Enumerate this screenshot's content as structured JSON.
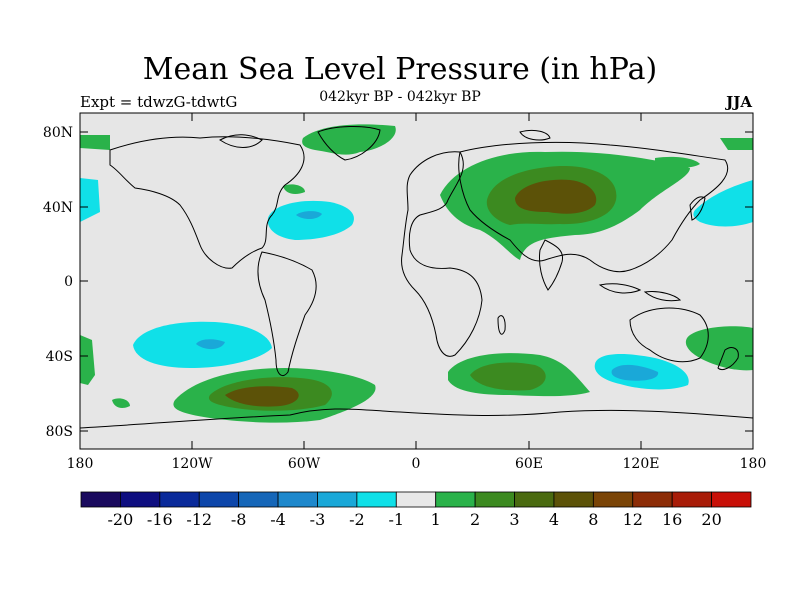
{
  "title": "Mean Sea Level Pressure (in hPa)",
  "expt_label": "Expt = tdwzG-tdwtG",
  "period": "042kyr BP - 042kyr BP",
  "season": "JJA",
  "lat_labels": [
    "80N",
    "40N",
    "0",
    "40S",
    "80S"
  ],
  "lon_labels": [
    "180",
    "120W",
    "60W",
    "0",
    "60E",
    "120E",
    "180"
  ],
  "colorbar": {
    "colors": [
      "#1a0a5e",
      "#0e0e80",
      "#0a2a9a",
      "#0d46aa",
      "#1566b8",
      "#1e88cc",
      "#1aa8d8",
      "#10e0e8",
      "#e8e8e8",
      "#2ab24a",
      "#3c8a20",
      "#4a6a10",
      "#5c5208",
      "#7a4406",
      "#8c2c06",
      "#a81c08",
      "#c81008"
    ],
    "labels": [
      "-20",
      "-16",
      "-12",
      "-8",
      "-4",
      "-3",
      "-2",
      "-1",
      "1",
      "2",
      "3",
      "4",
      "8",
      "12",
      "16",
      "20"
    ]
  }
}
